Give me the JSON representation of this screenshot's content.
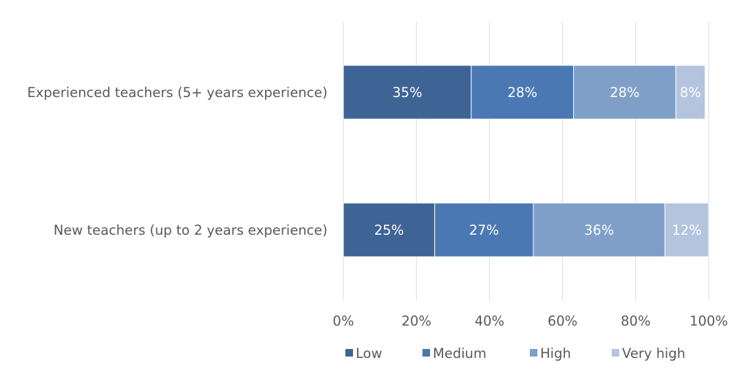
{
  "chart_data": {
    "type": "bar",
    "orientation": "horizontal",
    "stacked": true,
    "normalized": true,
    "categories": [
      "Experienced teachers (5+ years experience)",
      "New teachers (up to 2 years experience)"
    ],
    "series": [
      {
        "name": "Low",
        "color": "#3e6495",
        "values": [
          35,
          25
        ],
        "labels": [
          "35%",
          "25%"
        ]
      },
      {
        "name": "Medium",
        "color": "#4a78b2",
        "values": [
          28,
          27
        ],
        "labels": [
          "28%",
          "27%"
        ]
      },
      {
        "name": "High",
        "color": "#7f9fc9",
        "values": [
          28,
          36
        ],
        "labels": [
          "28%",
          "36%"
        ]
      },
      {
        "name": "Very high",
        "color": "#b4c4df",
        "values": [
          8,
          12
        ],
        "labels": [
          "8%",
          "12%"
        ]
      }
    ],
    "x_ticks": [
      "0%",
      "20%",
      "40%",
      "60%",
      "80%",
      "100%"
    ],
    "xlim": [
      0,
      100
    ],
    "grid": true,
    "legend_position": "bottom",
    "title": "",
    "xlabel": "",
    "ylabel": ""
  }
}
